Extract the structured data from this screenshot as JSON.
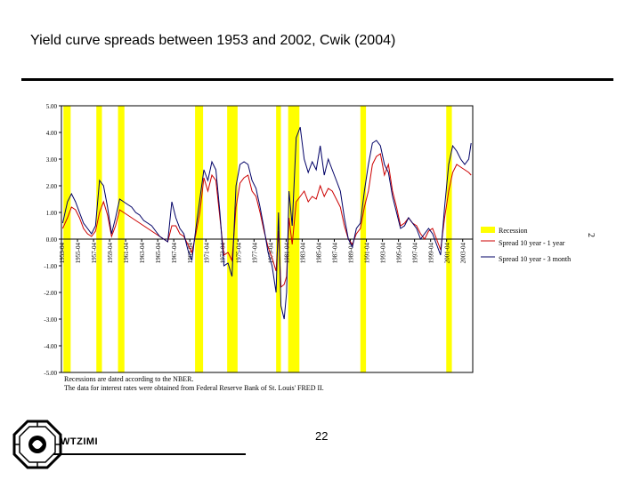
{
  "slide": {
    "title": "Yield curve spreads between 1953 and 2002, Cwik (2004)",
    "page_number": "22",
    "side_number": "2",
    "logo_text": "WTZIMI"
  },
  "notes": [
    "Recessions are dated according to the NBER.",
    "The data for interest rates were obtained from Federal Reserve Bank of St. Louis' FRED II."
  ],
  "colors": {
    "recession": "#ffff00",
    "spread_10y_1y": "#cc0000",
    "spread_10y_3m": "#000066"
  },
  "chart_data": {
    "type": "line",
    "title": "",
    "xlabel": "",
    "ylabel": "",
    "xlim": [
      1953.25,
      2004.5
    ],
    "ylim": [
      -5,
      5
    ],
    "yticks": [
      "5.00",
      "4.00",
      "3.00",
      "2.00",
      "1.00",
      "0.00",
      "-1.00",
      "-2.00",
      "-3.00",
      "-4.00",
      "-5.00"
    ],
    "xticks": [
      "1953-04",
      "1955-04",
      "1957-04",
      "1959-04",
      "1961-04",
      "1963-04",
      "1965-04",
      "1967-04",
      "1969-04",
      "1971-04",
      "1973-04",
      "1975-04",
      "1977-04",
      "1979-04",
      "1981-04",
      "1983-04",
      "1985-04",
      "1987-04",
      "1989-04",
      "1991-04",
      "1993-04",
      "1995-04",
      "1997-04",
      "1999-04",
      "2001-04",
      "2003-04"
    ],
    "grid": false,
    "legend": "right",
    "recessions": [
      {
        "start": 1953.5,
        "end": 1954.4
      },
      {
        "start": 1957.6,
        "end": 1958.3
      },
      {
        "start": 1960.3,
        "end": 1961.1
      },
      {
        "start": 1969.9,
        "end": 1970.9
      },
      {
        "start": 1973.9,
        "end": 1975.2
      },
      {
        "start": 1980.0,
        "end": 1980.6
      },
      {
        "start": 1981.5,
        "end": 1982.9
      },
      {
        "start": 1990.5,
        "end": 1991.2
      },
      {
        "start": 2001.2,
        "end": 2001.9
      }
    ],
    "legend_entries": [
      "Recession",
      "Spread 10 year - 1 year",
      "Spread 10 year - 3 month"
    ],
    "series": [
      {
        "name": "Spread 10 year - 1 year",
        "x": [
          1953.4,
          1954.0,
          1954.5,
          1955.0,
          1955.5,
          1956.0,
          1956.5,
          1957.0,
          1957.5,
          1958.0,
          1958.5,
          1959.0,
          1959.5,
          1960.0,
          1960.5,
          1961.0,
          1961.5,
          1962.0,
          1962.5,
          1963.0,
          1963.5,
          1964.0,
          1964.5,
          1965.0,
          1965.5,
          1966.0,
          1966.5,
          1967.0,
          1967.5,
          1968.0,
          1968.5,
          1969.0,
          1969.5,
          1970.0,
          1970.5,
          1971.0,
          1971.5,
          1972.0,
          1972.5,
          1973.0,
          1973.5,
          1974.0,
          1974.5,
          1975.0,
          1975.5,
          1976.0,
          1976.5,
          1977.0,
          1977.5,
          1978.0,
          1978.5,
          1979.0,
          1979.5,
          1980.0,
          1980.3,
          1980.6,
          1981.0,
          1981.3,
          1981.6,
          1982.0,
          1982.5,
          1983.0,
          1983.5,
          1984.0,
          1984.5,
          1985.0,
          1985.5,
          1986.0,
          1986.5,
          1987.0,
          1987.5,
          1988.0,
          1988.5,
          1989.0,
          1989.5,
          1990.0,
          1990.5,
          1991.0,
          1991.5,
          1992.0,
          1992.5,
          1993.0,
          1993.5,
          1994.0,
          1994.5,
          1995.0,
          1995.5,
          1996.0,
          1996.5,
          1997.0,
          1997.5,
          1998.0,
          1998.5,
          1999.0,
          1999.5,
          2000.0,
          2000.5,
          2001.0,
          2001.5,
          2002.0,
          2002.5,
          2003.0,
          2003.5,
          2004.0,
          2004.3
        ],
        "values": [
          0.4,
          0.8,
          1.2,
          1.1,
          0.8,
          0.4,
          0.2,
          0.1,
          0.3,
          1.0,
          1.4,
          0.9,
          0.1,
          0.5,
          1.1,
          1.0,
          0.9,
          0.8,
          0.7,
          0.6,
          0.5,
          0.4,
          0.3,
          0.2,
          0.1,
          0.0,
          -0.1,
          0.5,
          0.5,
          0.2,
          0.1,
          -0.2,
          -0.5,
          0.2,
          1.0,
          2.3,
          1.8,
          2.4,
          2.2,
          0.8,
          -0.6,
          -0.5,
          -0.8,
          1.2,
          2.1,
          2.3,
          2.4,
          1.8,
          1.6,
          1.0,
          0.3,
          -0.3,
          -0.7,
          -1.2,
          0.3,
          -1.8,
          -1.7,
          -1.4,
          0.8,
          -0.2,
          1.4,
          1.6,
          1.8,
          1.4,
          1.6,
          1.5,
          2.0,
          1.6,
          1.9,
          1.8,
          1.5,
          1.2,
          0.5,
          0.0,
          -0.2,
          0.2,
          0.4,
          1.2,
          1.8,
          2.8,
          3.1,
          3.2,
          2.4,
          2.8,
          1.8,
          1.2,
          0.5,
          0.6,
          0.8,
          0.6,
          0.5,
          0.2,
          0.0,
          0.3,
          0.4,
          0.0,
          -0.4,
          0.8,
          1.8,
          2.5,
          2.8,
          2.7,
          2.6,
          2.5,
          2.4
        ]
      },
      {
        "name": "Spread 10 year - 3 month",
        "x": [
          1953.4,
          1954.0,
          1954.5,
          1955.0,
          1955.5,
          1956.0,
          1956.5,
          1957.0,
          1957.5,
          1958.0,
          1958.5,
          1959.0,
          1959.5,
          1960.0,
          1960.5,
          1961.0,
          1961.5,
          1962.0,
          1962.5,
          1963.0,
          1963.5,
          1964.0,
          1964.5,
          1965.0,
          1965.5,
          1966.0,
          1966.5,
          1967.0,
          1967.5,
          1968.0,
          1968.5,
          1969.0,
          1969.5,
          1970.0,
          1970.5,
          1971.0,
          1971.5,
          1972.0,
          1972.5,
          1973.0,
          1973.5,
          1974.0,
          1974.5,
          1975.0,
          1975.5,
          1976.0,
          1976.5,
          1977.0,
          1977.5,
          1978.0,
          1978.5,
          1979.0,
          1979.5,
          1980.0,
          1980.3,
          1980.6,
          1981.0,
          1981.3,
          1981.6,
          1982.0,
          1982.5,
          1983.0,
          1983.5,
          1984.0,
          1984.5,
          1985.0,
          1985.5,
          1986.0,
          1986.5,
          1987.0,
          1987.5,
          1988.0,
          1988.5,
          1989.0,
          1989.5,
          1990.0,
          1990.5,
          1991.0,
          1991.5,
          1992.0,
          1992.5,
          1993.0,
          1993.5,
          1994.0,
          1994.5,
          1995.0,
          1995.5,
          1996.0,
          1996.5,
          1997.0,
          1997.5,
          1998.0,
          1998.5,
          1999.0,
          1999.5,
          2000.0,
          2000.5,
          2001.0,
          2001.5,
          2002.0,
          2002.5,
          2003.0,
          2003.5,
          2004.0,
          2004.3
        ],
        "values": [
          0.6,
          1.4,
          1.7,
          1.4,
          1.0,
          0.6,
          0.4,
          0.2,
          0.5,
          2.2,
          2.0,
          1.2,
          0.2,
          0.8,
          1.5,
          1.4,
          1.3,
          1.2,
          1.0,
          0.9,
          0.7,
          0.6,
          0.5,
          0.3,
          0.1,
          0.0,
          -0.1,
          1.4,
          0.8,
          0.4,
          0.2,
          -0.4,
          -0.8,
          0.4,
          1.5,
          2.6,
          2.2,
          2.9,
          2.6,
          1.0,
          -1.0,
          -0.9,
          -1.4,
          2.0,
          2.8,
          2.9,
          2.8,
          2.2,
          1.9,
          1.2,
          0.4,
          -0.5,
          -1.0,
          -2.0,
          1.0,
          -2.5,
          -3.0,
          -2.0,
          1.8,
          0.5,
          3.8,
          4.2,
          3.0,
          2.5,
          2.9,
          2.6,
          3.5,
          2.4,
          3.0,
          2.6,
          2.2,
          1.8,
          0.8,
          0.0,
          -0.3,
          0.4,
          0.6,
          1.8,
          2.8,
          3.6,
          3.7,
          3.5,
          2.8,
          2.5,
          1.6,
          1.0,
          0.4,
          0.5,
          0.8,
          0.6,
          0.4,
          0.0,
          0.2,
          0.4,
          0.2,
          -0.2,
          -0.6,
          1.2,
          2.8,
          3.5,
          3.3,
          3.0,
          2.8,
          3.0,
          3.6
        ]
      }
    ]
  }
}
